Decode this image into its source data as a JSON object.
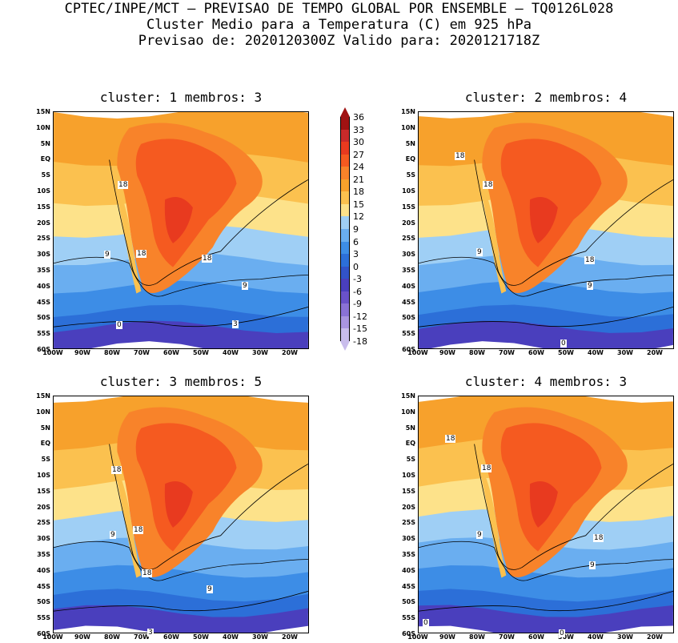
{
  "header": {
    "line1": "CPTEC/INPE/MCT – PREVISAO DE TEMPO GLOBAL POR ENSEMBLE – TQ0126L028",
    "line2": "Cluster Medio para a Temperatura (C) em 925 hPa",
    "line3": "Previsao de: 2020120300Z   Valido para: 2020121718Z"
  },
  "panels": [
    {
      "title": "cluster: 1   membros: 3",
      "labels": [
        "18",
        "18",
        "18",
        "9",
        "9",
        "0",
        "3"
      ]
    },
    {
      "title": "cluster: 2   membros: 4",
      "labels": [
        "18",
        "18",
        "18",
        "9",
        "9",
        "0"
      ]
    },
    {
      "title": "cluster: 3   membros: 5",
      "labels": [
        "18",
        "18",
        "18",
        "9",
        "9",
        "3"
      ]
    },
    {
      "title": "cluster: 4   membros: 3",
      "labels": [
        "18",
        "18",
        "18",
        "9",
        "9",
        "0",
        "0"
      ]
    }
  ],
  "lat_ticks": [
    "15N",
    "10N",
    "5N",
    "EQ",
    "5S",
    "10S",
    "15S",
    "20S",
    "25S",
    "30S",
    "35S",
    "40S",
    "45S",
    "50S",
    "55S",
    "60S"
  ],
  "lon_ticks": [
    "100W",
    "90W",
    "80W",
    "70W",
    "60W",
    "50W",
    "40W",
    "30W",
    "20W"
  ],
  "colorbar": {
    "labels": [
      "36",
      "33",
      "30",
      "27",
      "24",
      "21",
      "18",
      "15",
      "12",
      "9",
      "6",
      "3",
      "0",
      "-3",
      "-6",
      "-9",
      "-12",
      "-15",
      "-18"
    ],
    "colors": [
      "#a01212",
      "#c82a2a",
      "#e83a1f",
      "#f55a20",
      "#f8832a",
      "#f7a12c",
      "#fbc14f",
      "#fde28a",
      "#9fcff5",
      "#6aaef0",
      "#3d8de6",
      "#2c6fd8",
      "#3253c8",
      "#4a3fbd",
      "#6a52c9",
      "#8a72d6",
      "#a995e0",
      "#c9bdec"
    ]
  }
}
